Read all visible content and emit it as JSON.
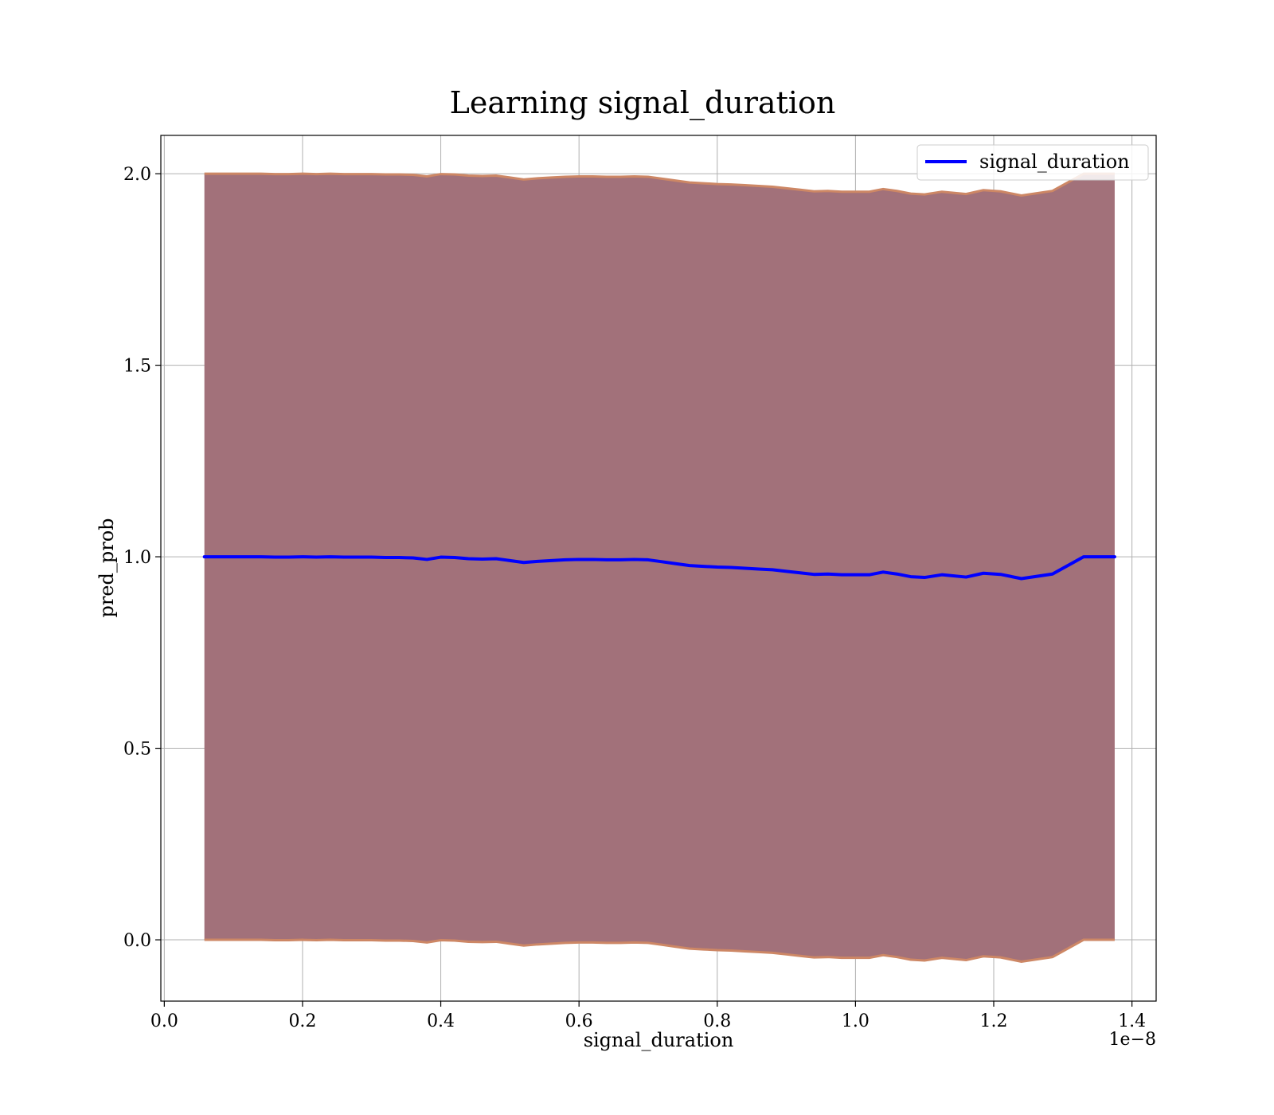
{
  "chart_data": {
    "type": "line",
    "title": "Learning signal_duration",
    "xlabel": "signal_duration",
    "ylabel": "pred_prob",
    "x_offset_label": "1e−8",
    "xlim": [
      -0.005,
      1.435
    ],
    "ylim": [
      -0.16,
      2.1
    ],
    "x_ticks": [
      0.0,
      0.2,
      0.4,
      0.6,
      0.8,
      1.0,
      1.2,
      1.4
    ],
    "x_tick_labels": [
      "0.0",
      "0.2",
      "0.4",
      "0.6",
      "0.8",
      "1.0",
      "1.2",
      "1.4"
    ],
    "y_ticks": [
      0.0,
      0.5,
      1.0,
      1.5,
      2.0
    ],
    "y_tick_labels": [
      "0.0",
      "0.5",
      "1.0",
      "1.5",
      "2.0"
    ],
    "grid": true,
    "legend_position": "top-right",
    "colors": {
      "line": "#0000ff",
      "band_fill": "#a2717a",
      "band_edge": "#cd8765"
    },
    "series": [
      {
        "name": "signal_duration",
        "x": [
          0.058,
          0.08,
          0.1,
          0.12,
          0.14,
          0.16,
          0.18,
          0.2,
          0.22,
          0.24,
          0.26,
          0.28,
          0.3,
          0.32,
          0.34,
          0.36,
          0.38,
          0.4,
          0.42,
          0.44,
          0.46,
          0.48,
          0.5,
          0.52,
          0.54,
          0.56,
          0.58,
          0.6,
          0.62,
          0.64,
          0.66,
          0.68,
          0.7,
          0.72,
          0.74,
          0.76,
          0.78,
          0.8,
          0.82,
          0.84,
          0.86,
          0.88,
          0.9,
          0.92,
          0.94,
          0.96,
          0.98,
          1.0,
          1.02,
          1.04,
          1.06,
          1.08,
          1.1,
          1.125,
          1.16,
          1.185,
          1.21,
          1.24,
          1.285,
          1.33,
          1.375
        ],
        "y": [
          1.0,
          1.0,
          1.0,
          1.0,
          1.0,
          0.999,
          0.999,
          1.0,
          0.999,
          1.0,
          0.999,
          0.999,
          0.999,
          0.998,
          0.998,
          0.997,
          0.993,
          0.999,
          0.998,
          0.995,
          0.994,
          0.995,
          0.99,
          0.985,
          0.988,
          0.99,
          0.992,
          0.993,
          0.993,
          0.992,
          0.992,
          0.993,
          0.992,
          0.987,
          0.982,
          0.977,
          0.975,
          0.973,
          0.972,
          0.97,
          0.968,
          0.966,
          0.962,
          0.958,
          0.954,
          0.955,
          0.953,
          0.953,
          0.953,
          0.96,
          0.955,
          0.948,
          0.946,
          0.953,
          0.947,
          0.957,
          0.954,
          0.943,
          0.955,
          1.0,
          1.0
        ],
        "upper": [
          2.0,
          2.0,
          2.0,
          2.0,
          2.0,
          1.999,
          1.999,
          2.0,
          1.999,
          2.0,
          1.999,
          1.999,
          1.999,
          1.998,
          1.998,
          1.997,
          1.993,
          1.999,
          1.998,
          1.995,
          1.994,
          1.995,
          1.99,
          1.985,
          1.988,
          1.99,
          1.992,
          1.993,
          1.993,
          1.992,
          1.992,
          1.993,
          1.992,
          1.987,
          1.982,
          1.977,
          1.975,
          1.973,
          1.972,
          1.97,
          1.968,
          1.966,
          1.962,
          1.958,
          1.954,
          1.955,
          1.953,
          1.953,
          1.953,
          1.96,
          1.955,
          1.948,
          1.946,
          1.953,
          1.947,
          1.957,
          1.954,
          1.943,
          1.955,
          2.0,
          2.0
        ],
        "lower": [
          0.0,
          0.0,
          0.0,
          0.0,
          0.0,
          -0.001,
          -0.001,
          0.0,
          -0.001,
          0.0,
          -0.001,
          -0.001,
          -0.001,
          -0.002,
          -0.002,
          -0.003,
          -0.007,
          -0.001,
          -0.002,
          -0.005,
          -0.006,
          -0.005,
          -0.01,
          -0.015,
          -0.012,
          -0.01,
          -0.008,
          -0.007,
          -0.007,
          -0.008,
          -0.008,
          -0.007,
          -0.008,
          -0.013,
          -0.018,
          -0.023,
          -0.025,
          -0.027,
          -0.028,
          -0.03,
          -0.032,
          -0.034,
          -0.038,
          -0.042,
          -0.046,
          -0.045,
          -0.047,
          -0.047,
          -0.047,
          -0.04,
          -0.045,
          -0.052,
          -0.054,
          -0.047,
          -0.053,
          -0.043,
          -0.046,
          -0.057,
          -0.045,
          0.0,
          0.0
        ]
      }
    ]
  }
}
